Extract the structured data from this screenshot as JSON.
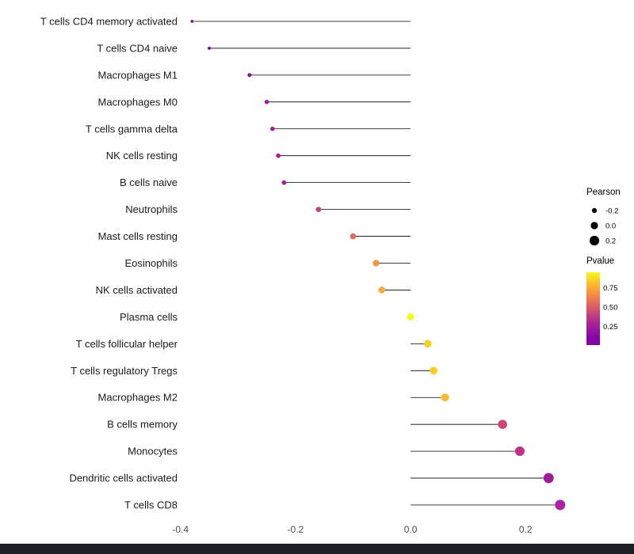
{
  "chart_data": {
    "type": "lollipop",
    "title": "",
    "xlabel": "",
    "ylabel": "",
    "xlim": [
      -0.412,
      0.292
    ],
    "grid": false,
    "x_ticks": [
      {
        "value": -0.4,
        "label": "-0.4"
      },
      {
        "value": -0.2,
        "label": "-0.2"
      },
      {
        "value": 0.0,
        "label": "0.0"
      },
      {
        "value": 0.2,
        "label": "0.2"
      }
    ],
    "categories": [
      "T cells CD4 memory activated",
      "T cells CD4 naive",
      "Macrophages M1",
      "Macrophages M0",
      "T cells gamma delta",
      "NK cells resting",
      "B cells naive",
      "Neutrophils",
      "Mast cells resting",
      "Eosinophils",
      "NK cells activated",
      "Plasma cells",
      "T cells follicular helper",
      "T cells regulatory Tregs",
      "Macrophages M2",
      "B cells memory",
      "Monocytes",
      "Dendritic cells activated",
      "T cells CD8"
    ],
    "values": [
      -0.38,
      -0.35,
      -0.28,
      -0.25,
      -0.24,
      -0.23,
      -0.22,
      -0.16,
      -0.1,
      -0.06,
      -0.05,
      0.0,
      0.03,
      0.04,
      0.06,
      0.16,
      0.19,
      0.24,
      0.26
    ],
    "point_colors": [
      "#7e03a8",
      "#8104a7",
      "#8f0da4",
      "#9c179e",
      "#a11b9b",
      "#a62098",
      "#a42299",
      "#c5407e",
      "#e56b5d",
      "#f89441",
      "#fca636",
      "#f0f921",
      "#fcce25",
      "#fcce25",
      "#fcb934",
      "#cc4778",
      "#bb3488",
      "#a11b9b",
      "#aa23a5"
    ],
    "stem_color": "#000000",
    "legend": {
      "size": {
        "title": "Pearson",
        "entries": [
          {
            "label": "-0.2",
            "value": -0.2
          },
          {
            "label": "0.0",
            "value": 0.0
          },
          {
            "label": "0.2",
            "value": 0.2
          }
        ]
      },
      "color": {
        "title": "Pvalue",
        "ticks": [
          {
            "label": "0.75",
            "value": 0.75
          },
          {
            "label": "0.50",
            "value": 0.5
          },
          {
            "label": "0.25",
            "value": 0.25
          }
        ],
        "gradient": [
          "#f0f921",
          "#fcce25",
          "#fca636",
          "#f2844b",
          "#e16462",
          "#cc4778",
          "#b12a90",
          "#9c179e",
          "#8606a6",
          "#7e03a8"
        ],
        "domain": [
          0.95,
          0.02
        ]
      }
    }
  },
  "colors": {
    "background": "#ffffff",
    "panel_background": "#ffffff",
    "axis_text": "#4d4d4d",
    "category_text": "#1a1a1a",
    "bottom_bar": "#1d1d26"
  }
}
